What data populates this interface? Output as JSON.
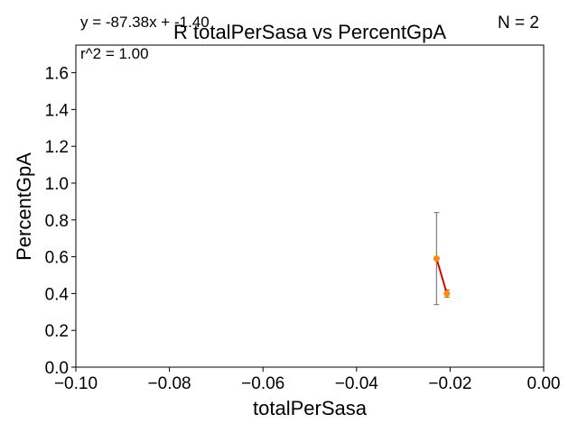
{
  "chart_data": {
    "type": "scatter",
    "title": "R totalPerSasa vs PercentGpA",
    "xlabel": "totalPerSasa",
    "ylabel": "PercentGpA",
    "xlim": [
      -0.1,
      0.0
    ],
    "ylim": [
      0.0,
      1.75
    ],
    "xticks": [
      -0.1,
      -0.08,
      -0.06,
      -0.04,
      -0.02,
      0.0
    ],
    "xtick_labels": [
      "−0.10",
      "−0.08",
      "−0.06",
      "−0.04",
      "−0.02",
      "0.00"
    ],
    "yticks": [
      0.0,
      0.2,
      0.4,
      0.6,
      0.8,
      1.0,
      1.2,
      1.4,
      1.6
    ],
    "ytick_labels": [
      "0.0",
      "0.2",
      "0.4",
      "0.6",
      "0.8",
      "1.0",
      "1.2",
      "1.4",
      "1.6"
    ],
    "grid": false,
    "points": [
      {
        "x": -0.0229,
        "y": 0.59,
        "err_low": 0.34,
        "err_high": 0.84
      },
      {
        "x": -0.0207,
        "y": 0.4,
        "err_low": 0.38,
        "err_high": 0.42
      }
    ],
    "fit_line": {
      "x": [
        -0.0229,
        -0.0207
      ],
      "y": [
        0.59,
        0.4
      ]
    },
    "annotations": {
      "equation": "y = -87.38x + -1.40",
      "r_squared": "r^2 = 1.00",
      "n": "N = 2"
    },
    "colors": {
      "point": "#ff8c00",
      "fit_line": "#e00000",
      "errorbar": "#808080",
      "axes": "#000000"
    }
  }
}
